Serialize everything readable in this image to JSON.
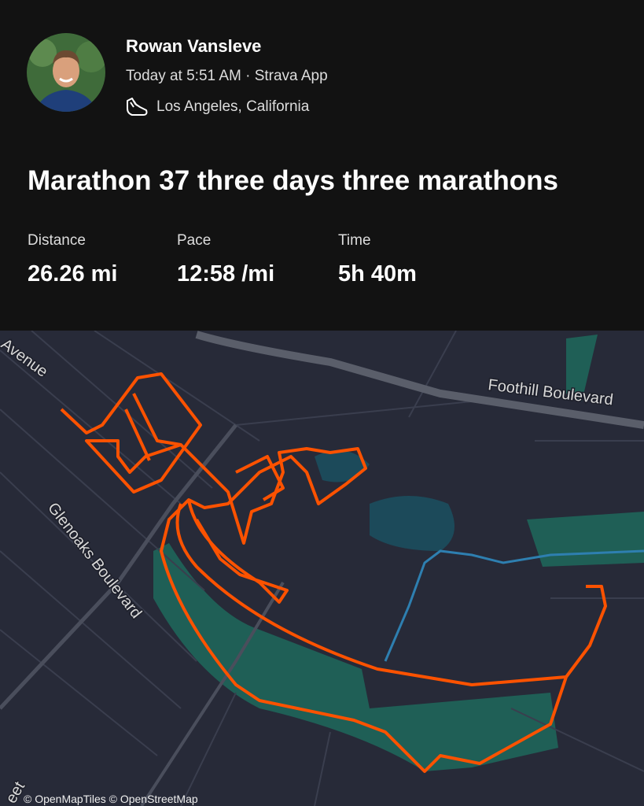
{
  "header": {
    "athlete": "Rowan Vansleve",
    "meta": "Today at 5:51 AM · Strava App",
    "location": "Los Angeles, California"
  },
  "activity": {
    "title": "Marathon 37 three days three marathons",
    "stats": [
      {
        "label": "Distance",
        "value": "26.26 mi"
      },
      {
        "label": "Pace",
        "value": "12:58 /mi"
      },
      {
        "label": "Time",
        "value": "5h 40m"
      }
    ]
  },
  "map": {
    "streets": [
      "Avenue",
      "Foothill Boulevard",
      "Glenoaks Boulevard",
      "eet"
    ],
    "attribution": "© OpenMapTiles © OpenStreetMap"
  }
}
